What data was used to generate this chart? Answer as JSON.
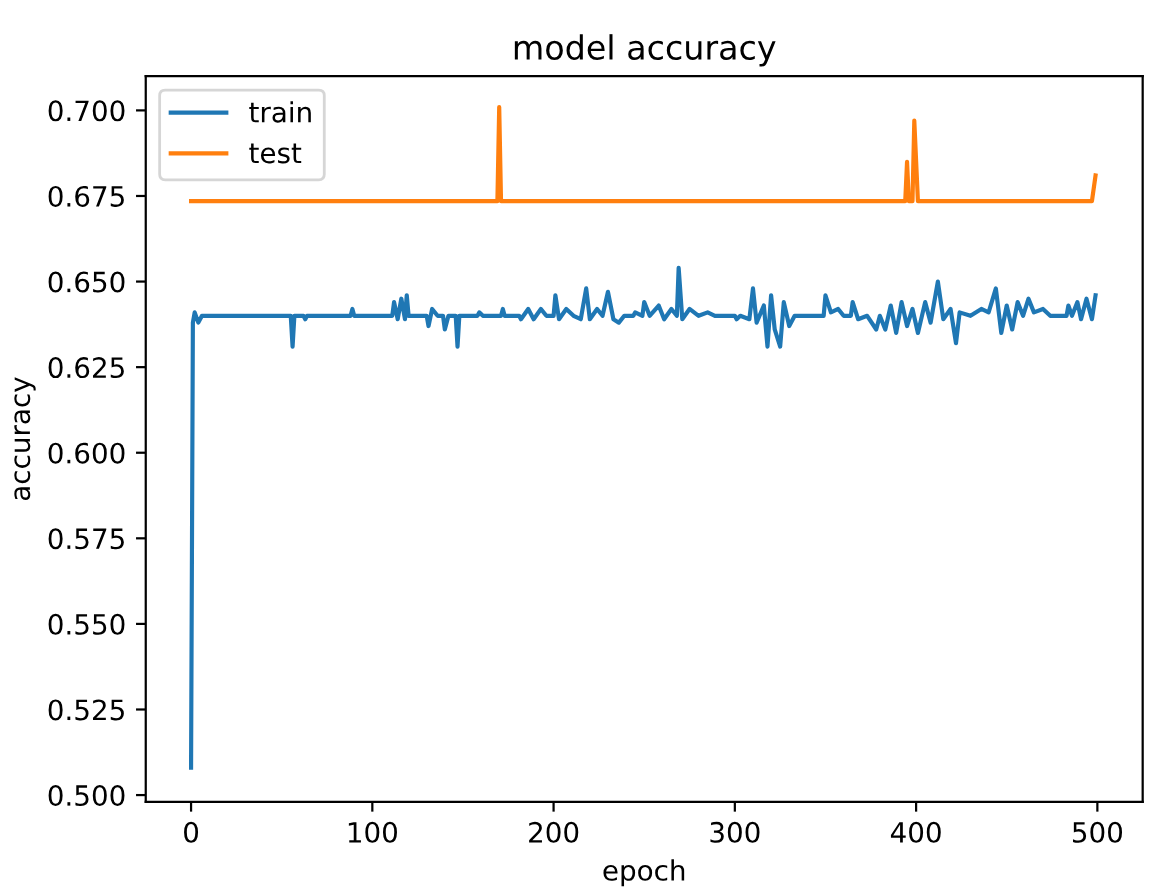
{
  "chart_data": {
    "type": "line",
    "title": "model accuracy",
    "xlabel": "epoch",
    "ylabel": "accuracy",
    "series": [
      {
        "name": "train",
        "color": "#1f77b4",
        "x": [
          0,
          1,
          2,
          4,
          6,
          55,
          56,
          57,
          62,
          63,
          64,
          88,
          89,
          90,
          111,
          112,
          114,
          116,
          118,
          119,
          120,
          130,
          131,
          133,
          136,
          139,
          140,
          142,
          146,
          147,
          148,
          158,
          159,
          161,
          171,
          172,
          173,
          181,
          182,
          186,
          189,
          193,
          196,
          200,
          201,
          203,
          207,
          211,
          215,
          218,
          220,
          224,
          227,
          230,
          233,
          236,
          239,
          244,
          245,
          249,
          250,
          253,
          258,
          261,
          265,
          268,
          269,
          271,
          275,
          280,
          285,
          289,
          300,
          301,
          303,
          308,
          310,
          312,
          316,
          318,
          320,
          322,
          325,
          327,
          330,
          333,
          349,
          350,
          353,
          357,
          360,
          364,
          365,
          368,
          373,
          378,
          380,
          383,
          386,
          389,
          392,
          395,
          398,
          401,
          405,
          408,
          412,
          415,
          419,
          422,
          424,
          430,
          436,
          440,
          444,
          447,
          450,
          453,
          456,
          459,
          462,
          465,
          470,
          474,
          483,
          484,
          486,
          489,
          491,
          494,
          497,
          499
        ],
        "values": [
          0.508,
          0.638,
          0.641,
          0.638,
          0.64,
          0.64,
          0.631,
          0.64,
          0.64,
          0.639,
          0.64,
          0.64,
          0.642,
          0.64,
          0.64,
          0.644,
          0.639,
          0.645,
          0.639,
          0.646,
          0.64,
          0.64,
          0.637,
          0.642,
          0.64,
          0.64,
          0.636,
          0.64,
          0.64,
          0.631,
          0.64,
          0.64,
          0.641,
          0.64,
          0.64,
          0.642,
          0.64,
          0.64,
          0.639,
          0.642,
          0.639,
          0.642,
          0.64,
          0.64,
          0.646,
          0.639,
          0.642,
          0.64,
          0.639,
          0.648,
          0.639,
          0.642,
          0.64,
          0.647,
          0.639,
          0.638,
          0.64,
          0.64,
          0.641,
          0.64,
          0.644,
          0.64,
          0.643,
          0.639,
          0.642,
          0.64,
          0.654,
          0.639,
          0.642,
          0.64,
          0.641,
          0.64,
          0.64,
          0.639,
          0.64,
          0.639,
          0.648,
          0.638,
          0.643,
          0.631,
          0.646,
          0.636,
          0.631,
          0.644,
          0.637,
          0.64,
          0.64,
          0.646,
          0.641,
          0.642,
          0.64,
          0.64,
          0.644,
          0.639,
          0.64,
          0.636,
          0.64,
          0.636,
          0.643,
          0.635,
          0.644,
          0.637,
          0.642,
          0.635,
          0.644,
          0.638,
          0.65,
          0.639,
          0.642,
          0.632,
          0.641,
          0.64,
          0.642,
          0.641,
          0.648,
          0.635,
          0.643,
          0.636,
          0.644,
          0.64,
          0.645,
          0.641,
          0.642,
          0.64,
          0.64,
          0.643,
          0.64,
          0.644,
          0.639,
          0.645,
          0.639,
          0.646
        ]
      },
      {
        "name": "test",
        "color": "#ff7f0e",
        "x": [
          0,
          169,
          170,
          171,
          394,
          395,
          396,
          398,
          399,
          401,
          497,
          499
        ],
        "values": [
          0.6735,
          0.6735,
          0.701,
          0.6735,
          0.6735,
          0.685,
          0.6735,
          0.6735,
          0.697,
          0.6735,
          0.6735,
          0.681
        ]
      }
    ],
    "xlim": [
      -25,
      525
    ],
    "xticks": [
      0,
      100,
      200,
      300,
      400,
      500
    ],
    "ylim": [
      0.498,
      0.71
    ],
    "yticks": [
      {
        "value": 0.5,
        "label": "0.500"
      },
      {
        "value": 0.525,
        "label": "0.525"
      },
      {
        "value": 0.55,
        "label": "0.550"
      },
      {
        "value": 0.575,
        "label": "0.575"
      },
      {
        "value": 0.6,
        "label": "0.600"
      },
      {
        "value": 0.625,
        "label": "0.625"
      },
      {
        "value": 0.65,
        "label": "0.650"
      },
      {
        "value": 0.675,
        "label": "0.675"
      },
      {
        "value": 0.7,
        "label": "0.700"
      }
    ],
    "legend": "top left",
    "grid": false
  }
}
